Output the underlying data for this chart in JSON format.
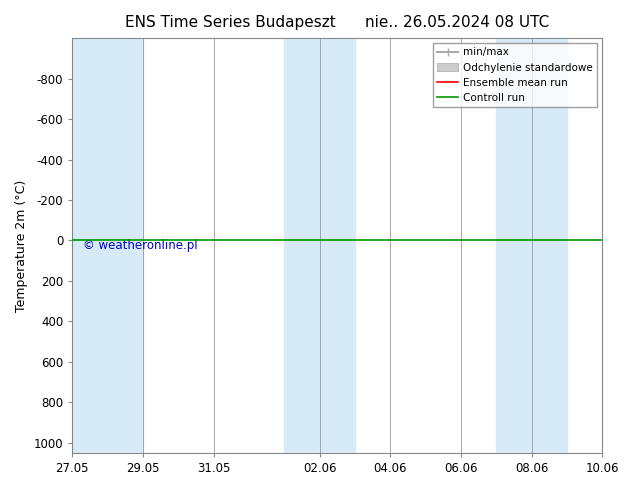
{
  "title": "ENS Time Series Budapeszt      nie.. 26.05.2024 08 UTC",
  "ylabel": "Temperature 2m (°C)",
  "ylim": [
    -1000,
    1050
  ],
  "yticks": [
    -800,
    -600,
    -400,
    -200,
    0,
    200,
    400,
    600,
    800,
    1000
  ],
  "background_color": "#ffffff",
  "plot_bg_color": "#ddeeff",
  "alternating_col_color": "#ddeeff",
  "x_start": "2024-05-27",
  "x_end": "2024-06-10",
  "xtick_labels": [
    "27.05",
    "29.05",
    "31.05",
    "02.06",
    "04.06",
    "06.06",
    "08.06",
    "10.06"
  ],
  "xtick_days": [
    0,
    2,
    4,
    7,
    9,
    11,
    13,
    15
  ],
  "control_run_value": 0,
  "ensemble_mean_value": 0,
  "legend_entries": [
    {
      "label": "min/max",
      "color": "#aaaaaa",
      "linestyle": "-",
      "linewidth": 1.5
    },
    {
      "label": "Odchylenie standardowe",
      "color": "#cccccc",
      "linestyle": "-",
      "linewidth": 6
    },
    {
      "label": "Ensemble mean run",
      "color": "#ff0000",
      "linestyle": "-",
      "linewidth": 1.2
    },
    {
      "label": "Controll run",
      "color": "#009900",
      "linestyle": "-",
      "linewidth": 1.2
    }
  ],
  "copyright_text": "© weatheronline.pl",
  "copyright_color": "#0000cc",
  "title_fontsize": 11,
  "axis_fontsize": 9,
  "tick_fontsize": 8.5
}
